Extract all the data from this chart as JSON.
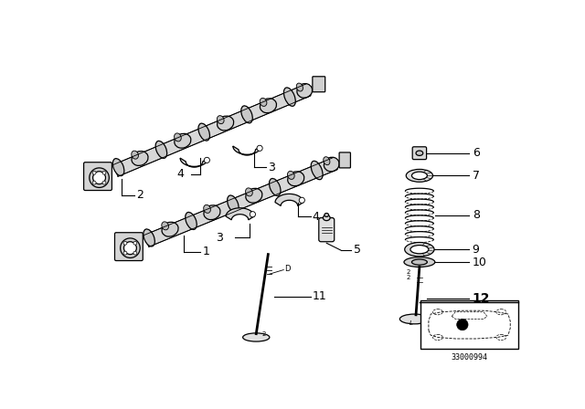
{
  "bg_color": "#ffffff",
  "line_color": "#000000",
  "diagram_code": "33000994",
  "shaft_color": "#e8e8e8",
  "lobe_color": "#d0d0d0",
  "dark_color": "#888888"
}
